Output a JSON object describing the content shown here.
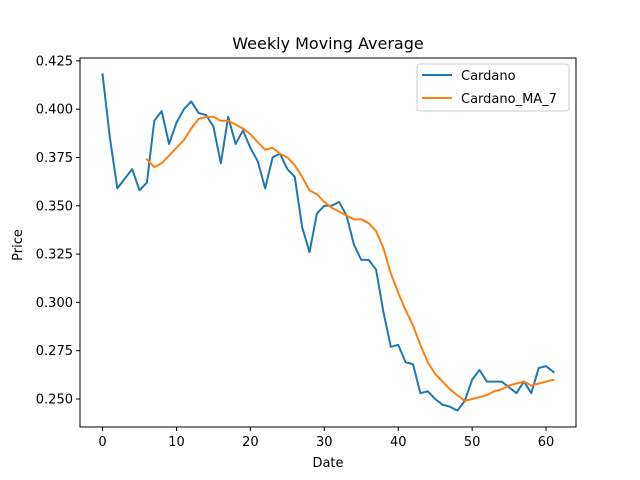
{
  "chart_data": {
    "type": "line",
    "title": "Weekly Moving Average",
    "xlabel": "Date",
    "ylabel": "Price",
    "xlim": [
      -3.05,
      64.05
    ],
    "ylim": [
      0.2355,
      0.4265
    ],
    "xticks": [
      0,
      10,
      20,
      30,
      40,
      50,
      60
    ],
    "yticks": [
      0.25,
      0.275,
      0.3,
      0.325,
      0.35,
      0.375,
      0.4,
      0.425
    ],
    "ytick_labels": [
      "0.250",
      "0.275",
      "0.300",
      "0.325",
      "0.350",
      "0.375",
      "0.400",
      "0.425"
    ],
    "grid": false,
    "legend_position": "top-right",
    "series": [
      {
        "name": "Cardano",
        "color": "#1f77b4",
        "x": [
          0,
          1,
          2,
          3,
          4,
          5,
          6,
          7,
          8,
          9,
          10,
          11,
          12,
          13,
          14,
          15,
          16,
          17,
          18,
          19,
          20,
          21,
          22,
          23,
          24,
          25,
          26,
          27,
          28,
          29,
          30,
          31,
          32,
          33,
          34,
          35,
          36,
          37,
          38,
          39,
          40,
          41,
          42,
          43,
          44,
          45,
          46,
          47,
          48,
          49,
          50,
          51,
          52,
          53,
          54,
          55,
          56,
          57,
          58,
          59,
          60,
          61
        ],
        "values": [
          0.418,
          0.385,
          0.359,
          0.364,
          0.369,
          0.358,
          0.362,
          0.394,
          0.399,
          0.382,
          0.393,
          0.4,
          0.404,
          0.398,
          0.397,
          0.391,
          0.372,
          0.396,
          0.382,
          0.389,
          0.38,
          0.373,
          0.359,
          0.375,
          0.377,
          0.369,
          0.365,
          0.339,
          0.326,
          0.346,
          0.35,
          0.35,
          0.352,
          0.345,
          0.33,
          0.322,
          0.322,
          0.317,
          0.295,
          0.277,
          0.278,
          0.269,
          0.268,
          0.253,
          0.254,
          0.25,
          0.247,
          0.246,
          0.244,
          0.249,
          0.26,
          0.265,
          0.259,
          0.259,
          0.259,
          0.256,
          0.253,
          0.259,
          0.253,
          0.266,
          0.267,
          0.264
        ]
      },
      {
        "name": "Cardano_MA_7",
        "color": "#ff7f0e",
        "x": [
          6,
          7,
          8,
          9,
          10,
          11,
          12,
          13,
          14,
          15,
          16,
          17,
          18,
          19,
          20,
          21,
          22,
          23,
          24,
          25,
          26,
          27,
          28,
          29,
          30,
          31,
          32,
          33,
          34,
          35,
          36,
          37,
          38,
          39,
          40,
          41,
          42,
          43,
          44,
          45,
          46,
          47,
          48,
          49,
          50,
          51,
          52,
          53,
          54,
          55,
          56,
          57,
          58,
          59,
          60,
          61
        ],
        "values": [
          0.374,
          0.37,
          0.372,
          0.376,
          0.38,
          0.384,
          0.39,
          0.395,
          0.396,
          0.396,
          0.394,
          0.394,
          0.392,
          0.39,
          0.387,
          0.383,
          0.379,
          0.38,
          0.377,
          0.375,
          0.371,
          0.365,
          0.358,
          0.356,
          0.352,
          0.349,
          0.347,
          0.345,
          0.343,
          0.343,
          0.341,
          0.337,
          0.328,
          0.315,
          0.305,
          0.296,
          0.288,
          0.278,
          0.269,
          0.263,
          0.259,
          0.255,
          0.252,
          0.249,
          0.25,
          0.251,
          0.252,
          0.254,
          0.255,
          0.257,
          0.258,
          0.259,
          0.257,
          0.258,
          0.259,
          0.26
        ]
      }
    ]
  }
}
